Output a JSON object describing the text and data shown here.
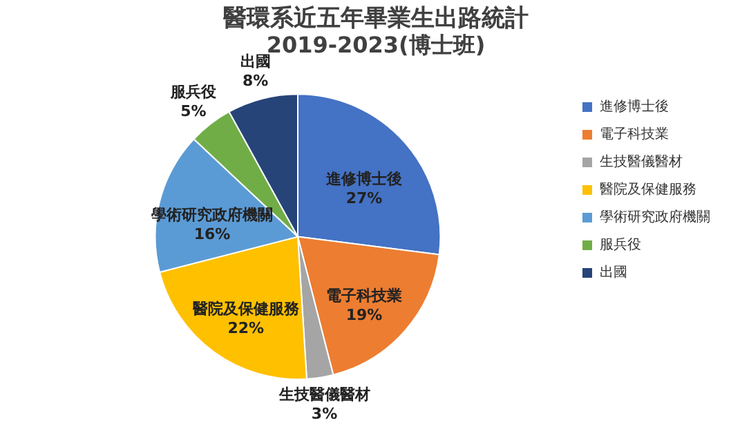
{
  "chart_data": {
    "type": "pie",
    "title": "醫環系近五年畢業生出路統計",
    "subtitle": "2019-2023(博士班)",
    "categories": [
      "進修博士後",
      "電子科技業",
      "生技醫儀醫材",
      "醫院及保健服務",
      "學術研究政府機關",
      "服兵役",
      "出國"
    ],
    "values": [
      27,
      19,
      3,
      22,
      16,
      5,
      8
    ],
    "value_labels": [
      "27%",
      "19%",
      "3%",
      "22%",
      "16%",
      "5%",
      "8%"
    ],
    "colors": [
      "#4472c4",
      "#ed7d31",
      "#a5a5a5",
      "#ffc000",
      "#5b9bd5",
      "#70ad47",
      "#264478"
    ],
    "legend": "right"
  }
}
